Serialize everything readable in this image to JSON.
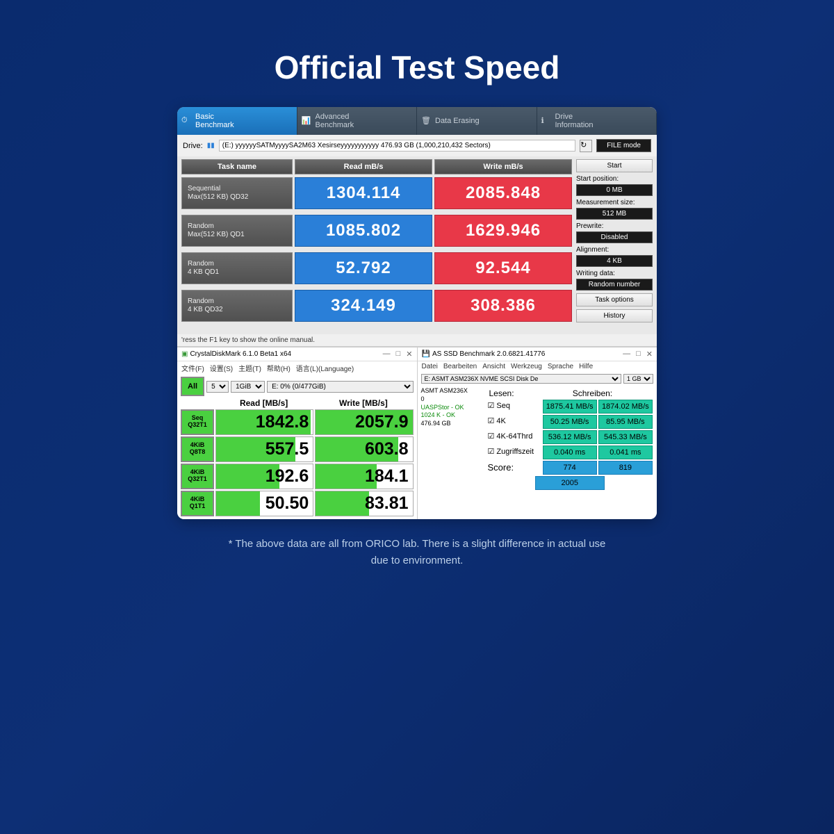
{
  "page": {
    "title": "Official Test Speed",
    "footnote": "* The above data are all from ORICO lab. There is a slight difference in actual use due to environment."
  },
  "topBench": {
    "tabs": [
      {
        "label": "Basic\nBenchmark",
        "active": true
      },
      {
        "label": "Advanced\nBenchmark",
        "active": false
      },
      {
        "label": "Data Erasing",
        "active": false
      },
      {
        "label": "Drive\nInformation",
        "active": false
      }
    ],
    "driveLabel": "Drive:",
    "driveValue": "(E:) yyyyyySATMyyyySA2M63 Xesirseyyyyyyyyyyy  476.93 GB (1,000,210,432 Sectors)",
    "fileMode": "FILE mode",
    "headers": {
      "task": "Task name",
      "read": "Read mB/s",
      "write": "Write mB/s"
    },
    "rows": [
      {
        "task": "Sequential\nMax(512 KB) QD32",
        "read": "1304.114",
        "write": "2085.848"
      },
      {
        "task": "Random\nMax(512 KB) QD1",
        "read": "1085.802",
        "write": "1629.946"
      },
      {
        "task": "Random\n4 KB QD1",
        "read": "52.792",
        "write": "92.544"
      },
      {
        "task": "Random\n4 KB QD32",
        "read": "324.149",
        "write": "308.386"
      }
    ],
    "side": {
      "start": "Start",
      "startPosLabel": "Start position:",
      "startPos": "0 MB",
      "measSizeLabel": "Measurement size:",
      "measSize": "512 MB",
      "prewriteLabel": "Prewrite:",
      "prewrite": "Disabled",
      "alignLabel": "Alignment:",
      "align": "4 KB",
      "writingLabel": "Writing data:",
      "writing": "Random number",
      "taskOptions": "Task options",
      "history": "History"
    },
    "status": "'ress the F1 key to show the online manual."
  },
  "cdm": {
    "title": "CrystalDiskMark 6.1.0 Beta1 x64",
    "menu": [
      "文件(F)",
      "设置(S)",
      "主题(T)",
      "帮助(H)",
      "语言(L)(Language)"
    ],
    "all": "All",
    "runs": "5",
    "size": "1GiB",
    "drive": "E: 0% (0/477GiB)",
    "headRead": "Read [MB/s]",
    "headWrite": "Write [MB/s]",
    "rows": [
      {
        "label": "Seq\nQ32T1",
        "read": "1842.8",
        "write": "2057.9",
        "rbar": 98,
        "wbar": 100
      },
      {
        "label": "4KiB\nQ8T8",
        "read": "557.5",
        "write": "603.8",
        "rbar": 82,
        "wbar": 85
      },
      {
        "label": "4KiB\nQ32T1",
        "read": "192.6",
        "write": "184.1",
        "rbar": 65,
        "wbar": 63
      },
      {
        "label": "4KiB\nQ1T1",
        "read": "50.50",
        "write": "83.81",
        "rbar": 45,
        "wbar": 55
      }
    ]
  },
  "asssd": {
    "title": "AS SSD Benchmark 2.0.6821.41776",
    "menu": [
      "Datei",
      "Bearbeiten",
      "Ansicht",
      "Werkzeug",
      "Sprache",
      "Hilfe"
    ],
    "driveSel": "E: ASMT ASM236X NVME SCSI Disk De",
    "sizeSel": "1 GB",
    "info": {
      "dev": "ASMT ASM236X",
      "zero": "0",
      "uasp": "UASPStor - OK",
      "align": "1024 K - OK",
      "cap": "476.94 GB"
    },
    "headRead": "Lesen:",
    "headWrite": "Schreiben:",
    "rows": [
      {
        "label": "Seq",
        "read": "1875.41 MB/s",
        "write": "1874.02 MB/s"
      },
      {
        "label": "4K",
        "read": "50.25 MB/s",
        "write": "85.95 MB/s"
      },
      {
        "label": "4K-64Thrd",
        "read": "536.12 MB/s",
        "write": "545.33 MB/s"
      },
      {
        "label": "Zugriffszeit",
        "read": "0.040 ms",
        "write": "0.041 ms"
      }
    ],
    "scoreLabel": "Score:",
    "scoreRead": "774",
    "scoreWrite": "819",
    "scoreTotal": "2005"
  }
}
